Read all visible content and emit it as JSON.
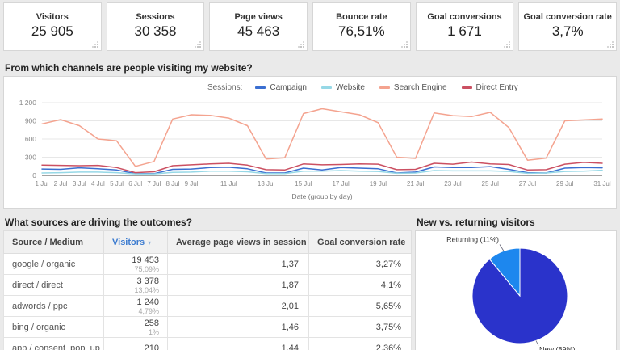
{
  "cards": [
    {
      "label": "Visitors",
      "value": "25 905"
    },
    {
      "label": "Sessions",
      "value": "30 358"
    },
    {
      "label": "Page views",
      "value": "45 463"
    },
    {
      "label": "Bounce rate",
      "value": "76,51%"
    },
    {
      "label": "Goal conversions",
      "value": "1 671"
    },
    {
      "label": "Goal conversion rate",
      "value": "3,7%"
    }
  ],
  "channels_section": {
    "title": "From which channels are people visiting my website?"
  },
  "sources_section": {
    "title": "What sources are driving the outcomes?"
  },
  "pie_section": {
    "title": "New vs. returning visitors"
  },
  "chart_data": [
    {
      "type": "line",
      "legend_prefix": "Sessions:",
      "legend_position": "top-center",
      "grid": true,
      "xlabel": "Date (group by day)",
      "ylim": [
        0,
        1200
      ],
      "yticks": [
        {
          "value": 0,
          "label": "0"
        },
        {
          "value": 300,
          "label": "300"
        },
        {
          "value": 600,
          "label": "600"
        },
        {
          "value": 900,
          "label": "900"
        },
        {
          "value": 1200,
          "label": "1 200"
        }
      ],
      "xticks": [
        {
          "day": 1,
          "label": "1 Jul"
        },
        {
          "day": 2,
          "label": "2 Jul"
        },
        {
          "day": 3,
          "label": "3 Jul"
        },
        {
          "day": 4,
          "label": "4 Jul"
        },
        {
          "day": 5,
          "label": "5 Jul"
        },
        {
          "day": 6,
          "label": "6 Jul"
        },
        {
          "day": 7,
          "label": "7 Jul"
        },
        {
          "day": 8,
          "label": "8 Jul"
        },
        {
          "day": 9,
          "label": "9 Jul"
        },
        {
          "day": 11,
          "label": "11 Jul"
        },
        {
          "day": 13,
          "label": "13 Jul"
        },
        {
          "day": 15,
          "label": "15 Jul"
        },
        {
          "day": 17,
          "label": "17 Jul"
        },
        {
          "day": 19,
          "label": "19 Jul"
        },
        {
          "day": 21,
          "label": "21 Jul"
        },
        {
          "day": 23,
          "label": "23 Jul"
        },
        {
          "day": 25,
          "label": "25 Jul"
        },
        {
          "day": 27,
          "label": "27 Jul"
        },
        {
          "day": 29,
          "label": "29 Jul"
        },
        {
          "day": 31,
          "label": "31 Jul"
        }
      ],
      "x_days": [
        1,
        2,
        3,
        4,
        5,
        6,
        7,
        8,
        9,
        10,
        11,
        12,
        13,
        14,
        15,
        16,
        17,
        18,
        19,
        20,
        21,
        22,
        23,
        24,
        25,
        26,
        27,
        28,
        29,
        30,
        31
      ],
      "series": [
        {
          "name": "Campaign",
          "color": "#3b6fd1",
          "values": [
            105,
            100,
            125,
            110,
            90,
            30,
            30,
            100,
            105,
            130,
            135,
            110,
            40,
            40,
            120,
            90,
            130,
            120,
            110,
            40,
            55,
            140,
            130,
            130,
            145,
            100,
            45,
            40,
            120,
            130,
            125
          ]
        },
        {
          "name": "Website",
          "color": "#96d8e6",
          "values": [
            40,
            45,
            55,
            55,
            45,
            25,
            25,
            50,
            55,
            70,
            70,
            60,
            30,
            30,
            70,
            70,
            80,
            70,
            65,
            35,
            40,
            80,
            75,
            75,
            75,
            65,
            35,
            40,
            65,
            70,
            85
          ]
        },
        {
          "name": "Search Engine",
          "color": "#f4a38f",
          "values": [
            850,
            920,
            820,
            600,
            570,
            150,
            230,
            930,
            1000,
            990,
            945,
            820,
            270,
            290,
            1020,
            1100,
            1050,
            1000,
            870,
            300,
            280,
            1030,
            985,
            970,
            1040,
            790,
            250,
            285,
            900,
            915,
            930
          ]
        },
        {
          "name": "Direct Entry",
          "color": "#cb5062",
          "values": [
            170,
            165,
            160,
            165,
            130,
            45,
            60,
            160,
            175,
            190,
            200,
            170,
            95,
            90,
            190,
            175,
            180,
            190,
            185,
            95,
            100,
            200,
            185,
            220,
            190,
            180,
            90,
            95,
            185,
            215,
            200
          ]
        }
      ]
    },
    {
      "type": "pie",
      "direction": "clockwise-from-top",
      "slices": [
        {
          "label": "New (89%)",
          "value": 89,
          "color": "#2a33cb"
        },
        {
          "label": "Returning (11%)",
          "value": 11,
          "color": "#1d87ee"
        }
      ]
    }
  ],
  "table": {
    "columns": [
      {
        "label": "Source / Medium",
        "sorted": false
      },
      {
        "label": "Visitors",
        "sorted": true,
        "sort_indicator": "▾"
      },
      {
        "label": "Average page views in session",
        "sorted": false
      },
      {
        "label": "Goal conversion rate",
        "sorted": false
      }
    ],
    "rows": [
      {
        "source": "google / organic",
        "visitors": "19 453",
        "visitors_pct": "75,09%",
        "avg_page_views": "1,37",
        "goal_rate": "3,27%"
      },
      {
        "source": "direct / direct",
        "visitors": "3 378",
        "visitors_pct": "13,04%",
        "avg_page_views": "1,87",
        "goal_rate": "4,1%"
      },
      {
        "source": "adwords / ppc",
        "visitors": "1 240",
        "visitors_pct": "4,79%",
        "avg_page_views": "2,01",
        "goal_rate": "5,65%"
      },
      {
        "source": "bing / organic",
        "visitors": "258",
        "visitors_pct": "1%",
        "avg_page_views": "1,46",
        "goal_rate": "3,75%"
      },
      {
        "source": "app / consent_pop_up",
        "visitors": "210",
        "visitors_pct": "",
        "avg_page_views": "1,44",
        "goal_rate": "2,36%"
      }
    ]
  }
}
